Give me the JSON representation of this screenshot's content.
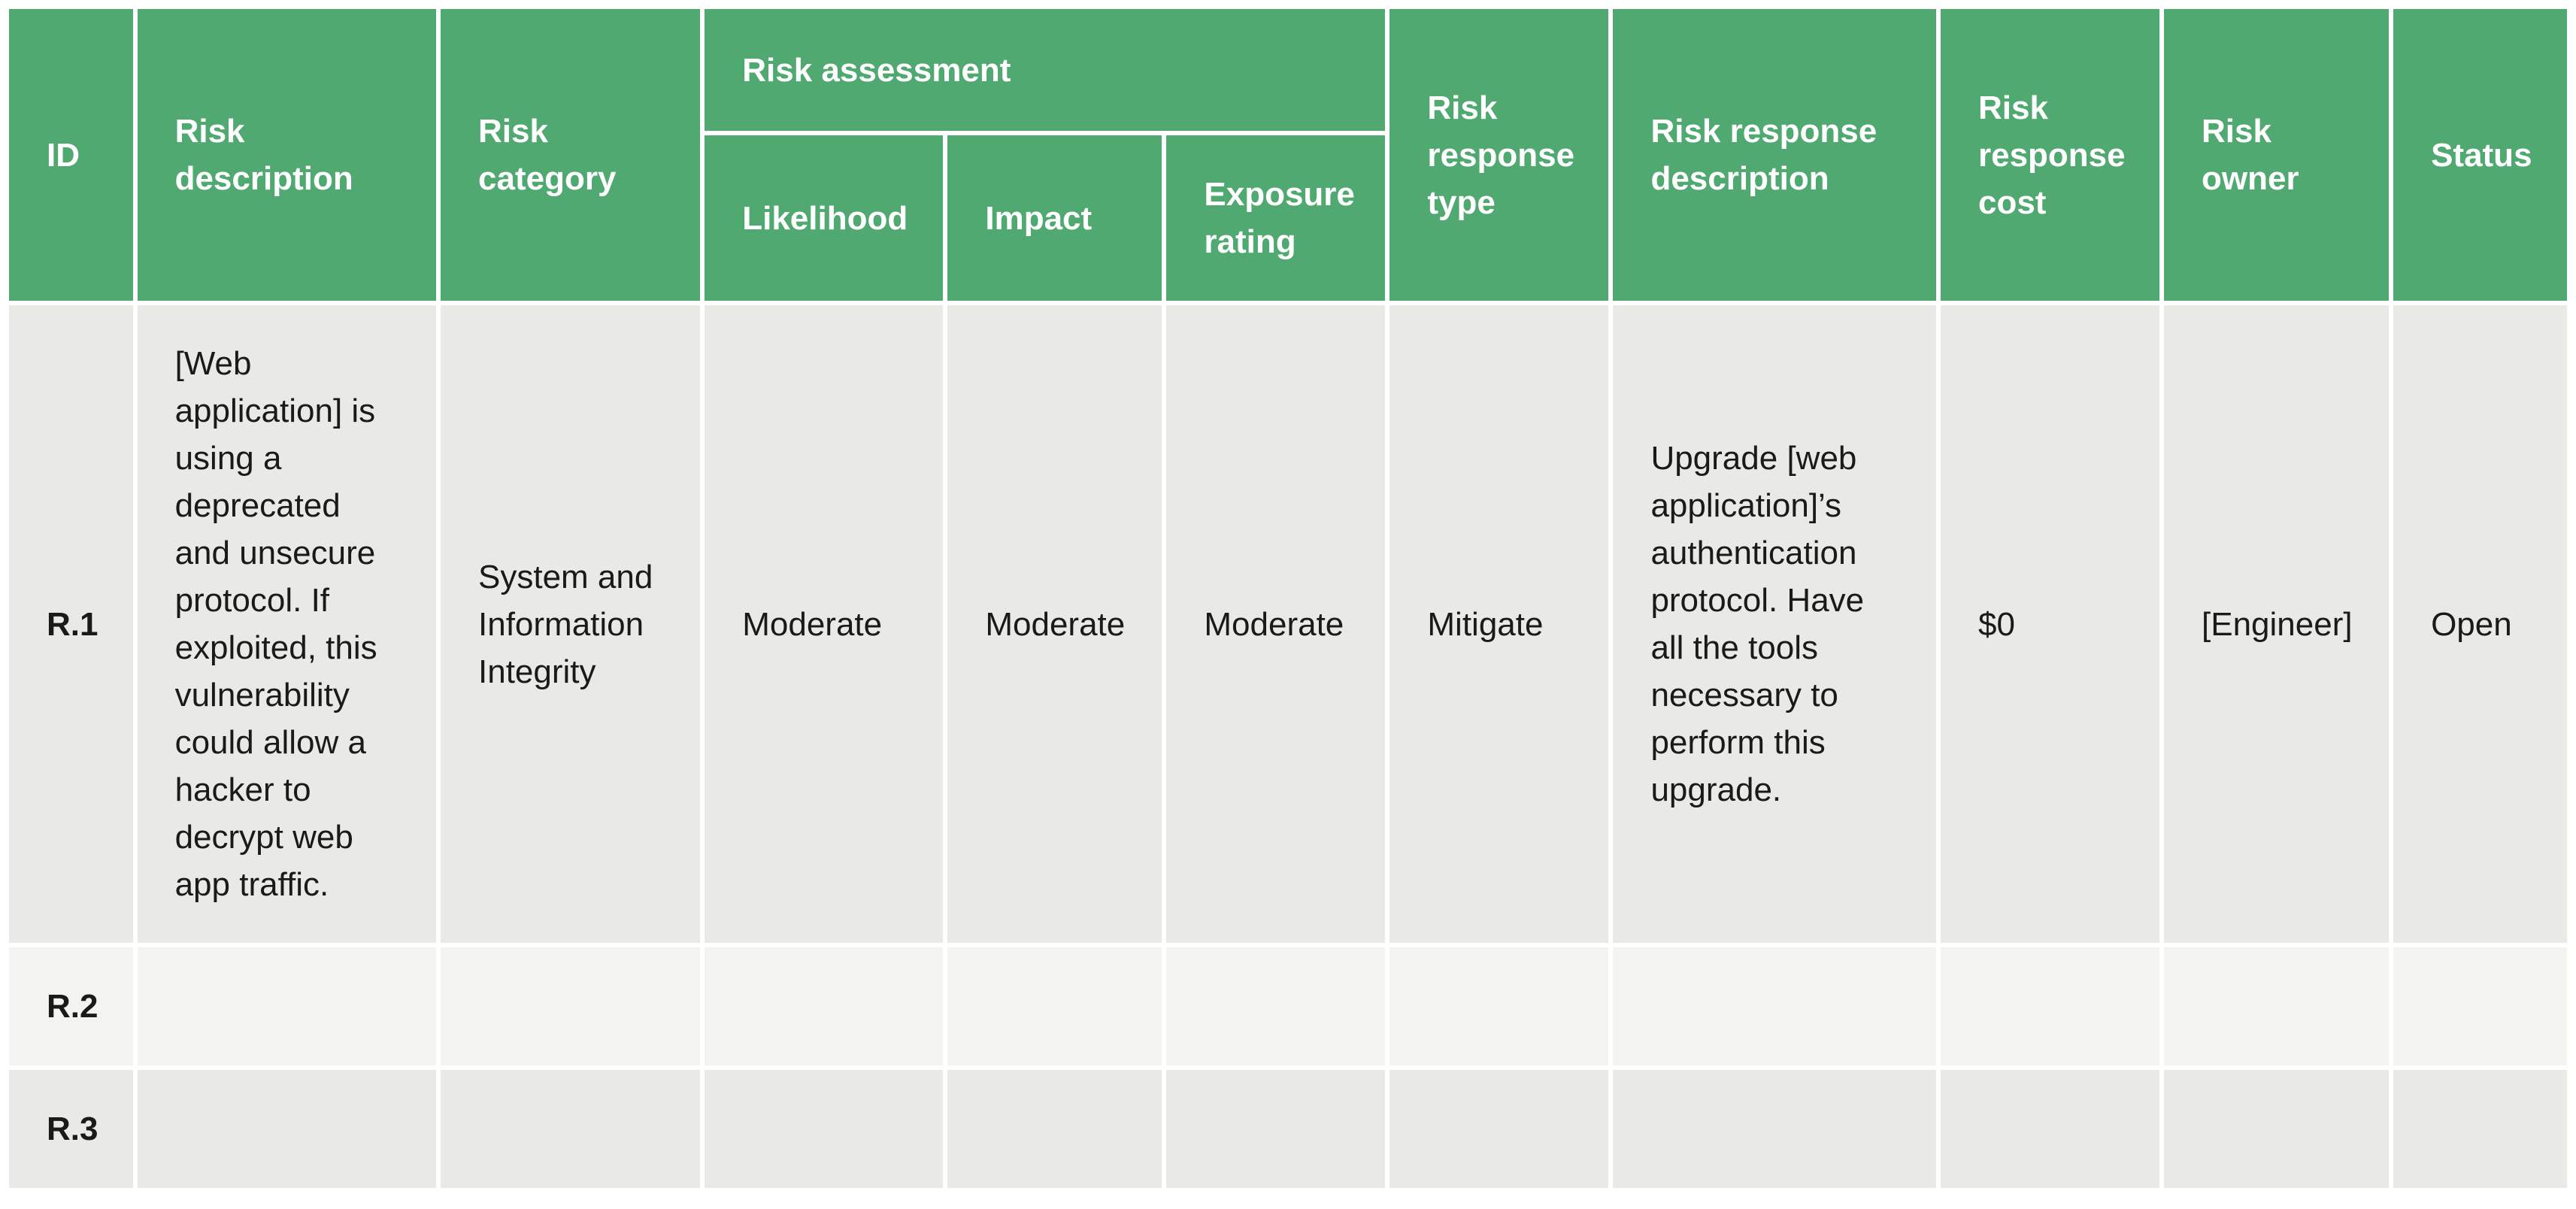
{
  "table": {
    "headers": {
      "id": "ID",
      "risk_description": "Risk description",
      "risk_category": "Risk category",
      "risk_assessment": "Risk assessment",
      "likelihood": "Likelihood",
      "impact": "Impact",
      "exposure_rating": "Exposure rating",
      "risk_response_type": "Risk response type",
      "risk_response_description": "Risk response description",
      "risk_response_cost": "Risk response cost",
      "risk_owner": "Risk owner",
      "status": "Status"
    },
    "rows": [
      {
        "id": "R.1",
        "risk_description": "[Web application] is using a deprecated and unsecure protocol. If exploited, this vulnerability could allow a hacker to decrypt web app traffic.",
        "risk_category": "System and Information Integrity",
        "likelihood": "Moderate",
        "impact": "Moderate",
        "exposure_rating": "Moderate",
        "risk_response_type": "Mitigate",
        "risk_response_description": "Upgrade [web application]’s authentication protocol. Have all the tools necessary to perform this upgrade.",
        "risk_response_cost": "$0",
        "risk_owner": "[Engineer]",
        "status": "Open"
      },
      {
        "id": "R.2",
        "risk_description": "",
        "risk_category": "",
        "likelihood": "",
        "impact": "",
        "exposure_rating": "",
        "risk_response_type": "",
        "risk_response_description": "",
        "risk_response_cost": "",
        "risk_owner": "",
        "status": ""
      },
      {
        "id": "R.3",
        "risk_description": "",
        "risk_category": "",
        "likelihood": "",
        "impact": "",
        "exposure_rating": "",
        "risk_response_type": "",
        "risk_response_description": "",
        "risk_response_cost": "",
        "risk_owner": "",
        "status": ""
      }
    ],
    "colors": {
      "header_bg": "#50a970",
      "header_text": "#ffffff",
      "row_odd_bg": "#e9e9e5",
      "row_even_bg": "#f3f3f0",
      "body_text": "#1a1a1a"
    }
  }
}
